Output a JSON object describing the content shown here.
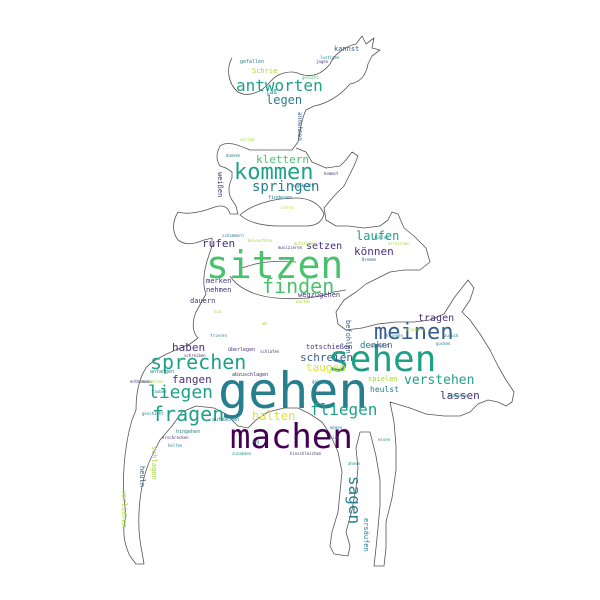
{
  "palette": {
    "dark_purple": "#440154",
    "indigo": "#46327e",
    "blue": "#365c8d",
    "steel": "#277f8e",
    "teal": "#1fa187",
    "green": "#4ac16d",
    "lime": "#a0da39",
    "yellow": "#d9e23a",
    "outline": "#555555"
  },
  "figure": {
    "shape": "bremen-town-musicians-silhouette"
  },
  "words": [
    {
      "text": "gehen",
      "color": "steel"
    },
    {
      "text": "machen",
      "color": "dark_purple"
    },
    {
      "text": "sitzen",
      "color": "green"
    },
    {
      "text": "sehen",
      "color": "teal"
    },
    {
      "text": "kommen",
      "color": "teal"
    },
    {
      "text": "sprechen",
      "color": "teal"
    },
    {
      "text": "fragen",
      "color": "teal"
    },
    {
      "text": "meinen",
      "color": "blue"
    },
    {
      "text": "finden",
      "color": "green"
    },
    {
      "text": "liegen",
      "color": "teal"
    },
    {
      "text": "antworten",
      "color": "teal"
    },
    {
      "text": "fliegen",
      "color": "teal"
    },
    {
      "text": "sagen",
      "color": "steel"
    },
    {
      "text": "legen",
      "color": "steel"
    },
    {
      "text": "springen",
      "color": "steel"
    },
    {
      "text": "verstehen",
      "color": "teal"
    },
    {
      "text": "schreien",
      "color": "blue"
    },
    {
      "text": "halten",
      "color": "yellow"
    },
    {
      "text": "klettern",
      "color": "green"
    },
    {
      "text": "laufen",
      "color": "teal"
    },
    {
      "text": "können",
      "color": "indigo"
    },
    {
      "text": "haben",
      "color": "indigo"
    },
    {
      "text": "fangen",
      "color": "indigo"
    },
    {
      "text": "lassen",
      "color": "indigo"
    },
    {
      "text": "tragen",
      "color": "indigo"
    },
    {
      "text": "rufen",
      "color": "indigo"
    },
    {
      "text": "setzen",
      "color": "indigo"
    },
    {
      "text": "taugen",
      "color": "yellow"
    },
    {
      "text": "denken",
      "color": "steel"
    },
    {
      "text": "heulst",
      "color": "steel"
    },
    {
      "text": "merken",
      "color": "indigo"
    },
    {
      "text": "nehmen",
      "color": "indigo"
    },
    {
      "text": "dauern",
      "color": "indigo"
    },
    {
      "text": "wegzugehen",
      "color": "indigo"
    },
    {
      "text": "totschießen",
      "color": "indigo"
    },
    {
      "text": "spielen",
      "color": "lime"
    },
    {
      "text": "ersäufen",
      "color": "steel"
    },
    {
      "text": "befohlen",
      "color": "blue"
    },
    {
      "text": "kannst",
      "color": "blue"
    },
    {
      "text": "Schrie",
      "color": "lime"
    },
    {
      "text": "laß",
      "color": "steel"
    },
    {
      "text": "weißen",
      "color": "indigo"
    },
    {
      "text": "annehmen",
      "color": "blue"
    },
    {
      "text": "schlagen",
      "color": "lime"
    },
    {
      "text": "heuln",
      "color": "blue"
    },
    {
      "text": "verlieren",
      "color": "lime"
    },
    {
      "text": "gefallen",
      "color": "steel"
    },
    {
      "text": "findesen",
      "color": "steel"
    },
    {
      "text": "anfangen",
      "color": "steel"
    },
    {
      "text": "überlegen",
      "color": "indigo"
    },
    {
      "text": "abzuschlagen",
      "color": "indigo"
    },
    {
      "text": "hingehen",
      "color": "steel"
    },
    {
      "text": "aufmachen",
      "color": "steel"
    },
    {
      "text": "hinschleichen",
      "color": "indigo"
    },
    {
      "text": "klingen",
      "color": "steel"
    },
    {
      "text": "gesucht",
      "color": "green"
    },
    {
      "text": "musizieren",
      "color": "indigo"
    },
    {
      "text": "Bremen",
      "color": "blue"
    },
    {
      "text": "schimmern",
      "color": "steel"
    },
    {
      "text": "erreichen",
      "color": "lime"
    },
    {
      "text": "gucken",
      "color": "steel"
    },
    {
      "text": "beleuchten",
      "color": "lime"
    },
    {
      "text": "lustigen",
      "color": "steel"
    },
    {
      "text": "schreiben",
      "color": "indigo"
    },
    {
      "text": "schläfst",
      "color": "indigo"
    },
    {
      "text": "sollen",
      "color": "lime"
    },
    {
      "text": "danken",
      "color": "steel"
    },
    {
      "text": "ahnen",
      "color": "steel"
    },
    {
      "text": "jagen",
      "color": "indigo"
    },
    {
      "text": "angekauft",
      "color": "steel"
    },
    {
      "text": "hinsetzen",
      "color": "lime"
    },
    {
      "text": "geschieht",
      "color": "steel"
    },
    {
      "text": "stehen",
      "color": "yellow"
    },
    {
      "text": "kommst",
      "color": "indigo"
    },
    {
      "text": "tun",
      "color": "lime"
    },
    {
      "text": "bin",
      "color": "steel"
    },
    {
      "text": "zog",
      "color": "steel"
    },
    {
      "text": "ab",
      "color": "lime"
    },
    {
      "text": "schlafen",
      "color": "indigo"
    },
    {
      "text": "bedanken",
      "color": "steel"
    },
    {
      "text": "rauben",
      "color": "steel"
    },
    {
      "text": "zusammen",
      "color": "teal"
    },
    {
      "text": "aufstehen",
      "color": "lime"
    },
    {
      "text": "entkommen",
      "color": "indigo"
    },
    {
      "text": "gelassen",
      "color": "steel"
    },
    {
      "text": "fühlen",
      "color": "steel"
    },
    {
      "text": "helfen",
      "color": "steel"
    },
    {
      "text": "brauchen",
      "color": "lime"
    },
    {
      "text": "zurück",
      "color": "steel"
    },
    {
      "text": "sieht",
      "color": "steel"
    },
    {
      "text": "warten",
      "color": "lime"
    },
    {
      "text": "frieren",
      "color": "steel"
    },
    {
      "text": "erschrecken",
      "color": "indigo"
    },
    {
      "text": "mögen",
      "color": "steel"
    },
    {
      "text": "essen",
      "color": "steel"
    }
  ]
}
